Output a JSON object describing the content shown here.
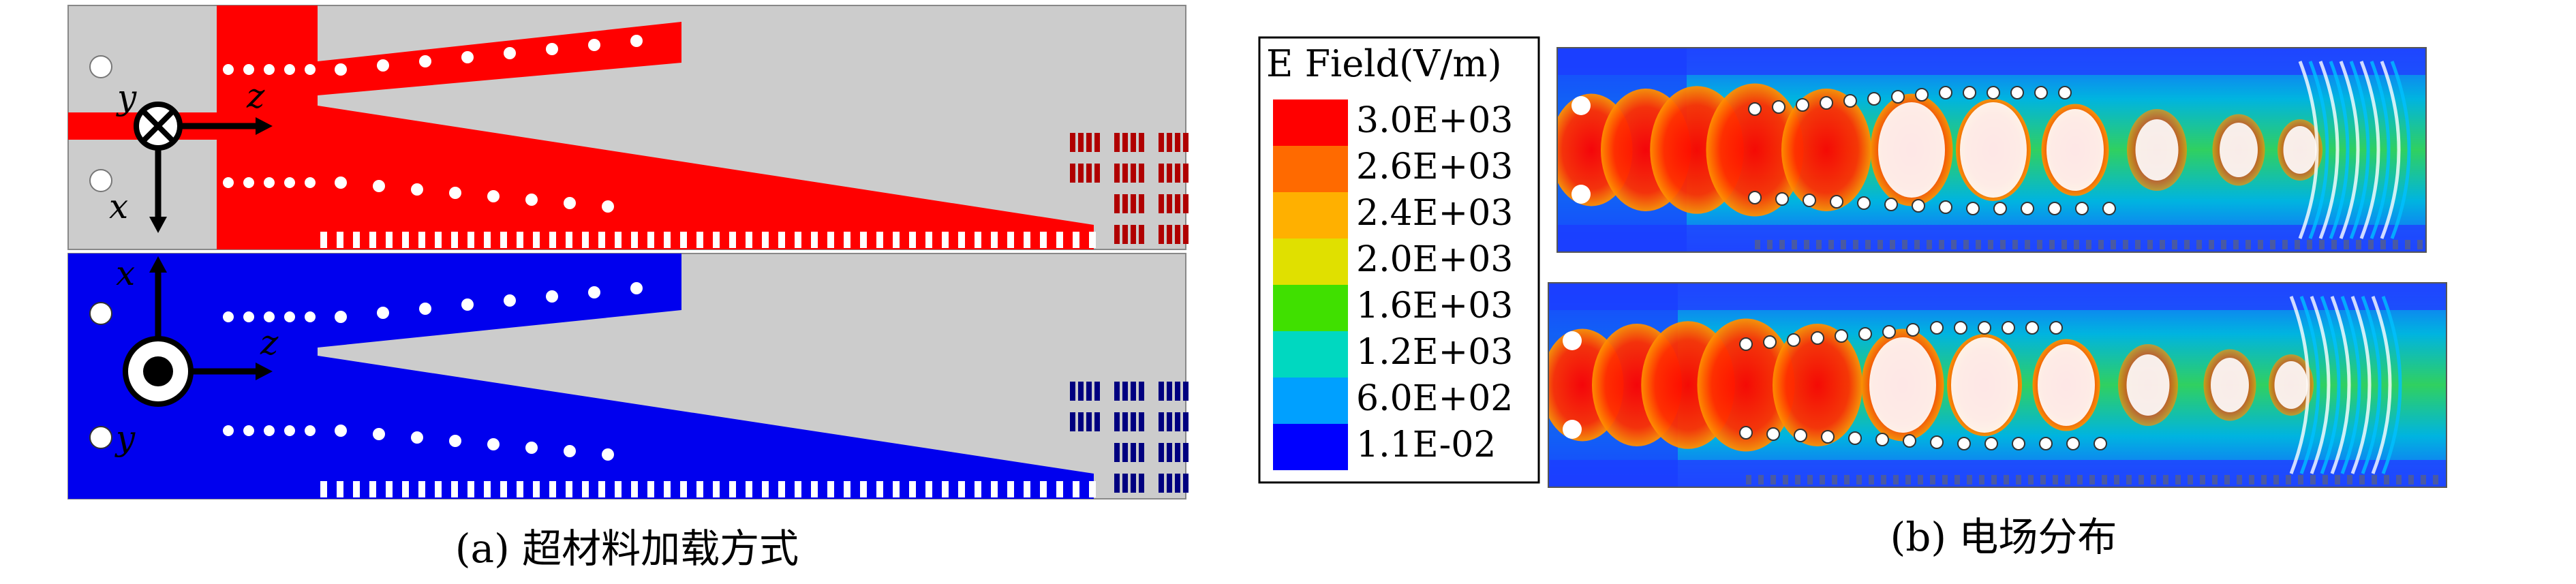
{
  "panel_a": {
    "caption": "(a) 超材料加载方式",
    "top_axes": {
      "vertical": "y",
      "horizontal": "z",
      "down": "x"
    },
    "bottom_axes": {
      "up": "x",
      "horizontal": "z",
      "down": "y"
    },
    "top_color": "#ff0000",
    "bottom_color": "#0000ee",
    "background_color": "#cccccc",
    "slot_color_top": "#b00000",
    "slot_color_bottom": "#000080"
  },
  "panel_b": {
    "caption": "(b) 电场分布",
    "legend_title": "E Field(V/m)",
    "legend": [
      {
        "label": "3.0E+03",
        "color": "#ff0000"
      },
      {
        "label": "2.6E+03",
        "color": "#ff6a00"
      },
      {
        "label": "2.4E+03",
        "color": "#ffb000"
      },
      {
        "label": "2.0E+03",
        "color": "#e0e000"
      },
      {
        "label": "1.6E+03",
        "color": "#40e000"
      },
      {
        "label": "1.2E+03",
        "color": "#00d8c0"
      },
      {
        "label": "6.0E+02",
        "color": "#00a0ff"
      },
      {
        "label": "1.1E-02",
        "color": "#0000ff"
      }
    ]
  }
}
